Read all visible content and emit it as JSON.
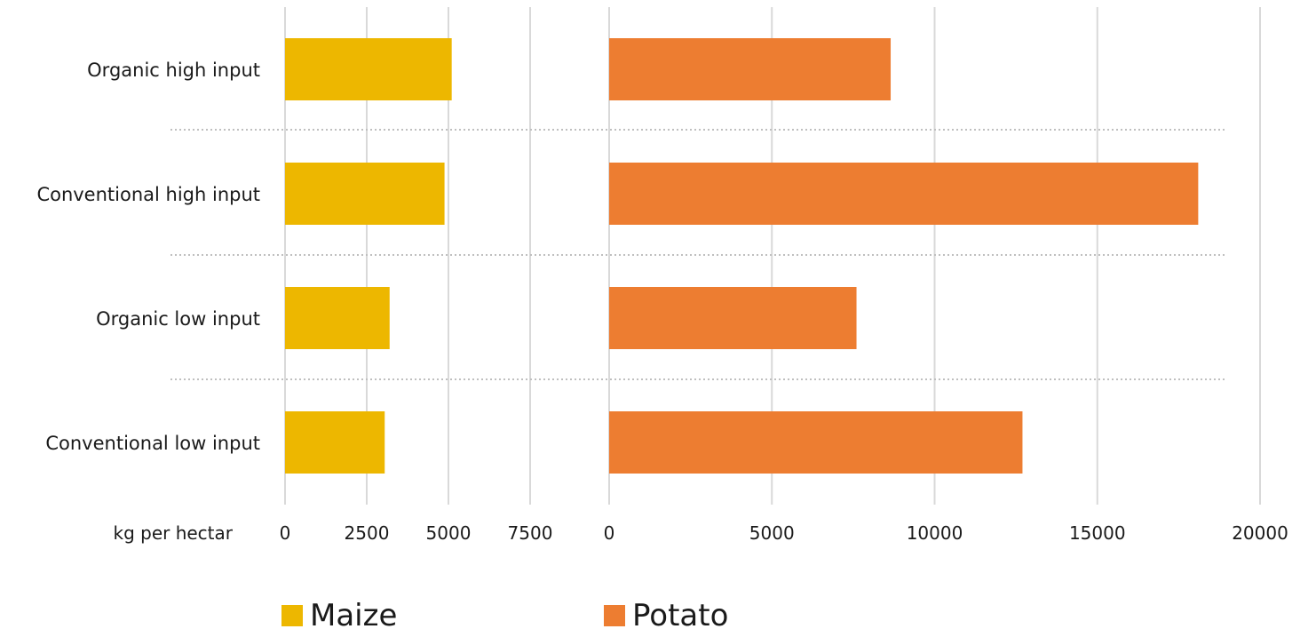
{
  "chart_data": {
    "type": "bar",
    "orientation": "horizontal",
    "categories": [
      "Organic high input",
      "Conventional high input",
      "Organic low input",
      "Conventional low input"
    ],
    "axis_label": "kg per hectar",
    "grid": true,
    "legend_position": "bottom",
    "panels": [
      {
        "series_name": "Maize",
        "color": "#EDB700",
        "xlim": [
          0,
          7500
        ],
        "ticks": [
          "0",
          "2500",
          "5000",
          "7500"
        ],
        "tick_values": [
          0,
          2500,
          5000,
          7500
        ],
        "values": [
          5100,
          4880,
          3200,
          3050
        ]
      },
      {
        "series_name": "Potato",
        "color": "#ED7D31",
        "xlim": [
          0,
          20000
        ],
        "ticks": [
          "0",
          "5000",
          "10000",
          "15000",
          "20000"
        ],
        "tick_values": [
          0,
          5000,
          10000,
          15000,
          20000
        ],
        "values": [
          8650,
          18100,
          7600,
          12700
        ]
      }
    ]
  },
  "legend": [
    {
      "label": "Maize",
      "color": "#EDB700"
    },
    {
      "label": "Potato",
      "color": "#ED7D31"
    }
  ]
}
